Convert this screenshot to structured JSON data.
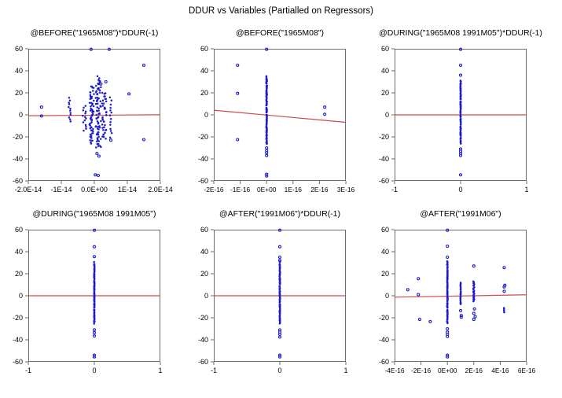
{
  "chart_data": {
    "type": "scatter",
    "title": "DDUR vs Variables (Partialled on Regressors)",
    "ylim": [
      -60,
      60
    ],
    "yticks": [
      60,
      40,
      20,
      0,
      -20,
      -40,
      -60
    ],
    "legend": null,
    "grid": false,
    "colors": {
      "point": "#1c1ccd",
      "line": "#cc4b4b",
      "frame": "#6b6b6b",
      "text": "#000000"
    },
    "panels": [
      {
        "title": "@BEFORE(\"1965M08\")*DDUR(-1)",
        "xlim": [
          -2e-14,
          2e-14
        ],
        "xticks": [
          {
            "v": -2e-14,
            "label": "-2.0E-14"
          },
          {
            "v": -1e-14,
            "label": "-1E-14"
          },
          {
            "v": 0,
            "label": "0.0E+00"
          },
          {
            "v": 1e-14,
            "label": "1E-14"
          },
          {
            "v": 2e-14,
            "label": "2.0E-14"
          }
        ],
        "line": [
          -0.8,
          0.1
        ],
        "columns": [
          {
            "x": -7.5e-15,
            "ymin": -6,
            "ymax": 15,
            "n": 12,
            "spread": 3e-16
          },
          {
            "x": -3e-15,
            "ymin": -14,
            "ymax": 8,
            "n": 14,
            "spread": 5e-16
          },
          {
            "x": -8e-16,
            "ymin": -26,
            "ymax": 26,
            "n": 60,
            "spread": 7e-16
          },
          {
            "x": 1.2e-15,
            "ymin": -30,
            "ymax": 35,
            "n": 75,
            "spread": 8e-16
          },
          {
            "x": 3e-15,
            "ymin": -22,
            "ymax": 21,
            "n": 38,
            "spread": 7e-16
          },
          {
            "x": 5e-15,
            "ymin": -20,
            "ymax": 15,
            "n": 14,
            "spread": 3e-16
          }
        ],
        "points": [
          [
            -1.6e-14,
            7
          ],
          [
            -1.6e-14,
            -1
          ],
          [
            -1e-15,
            59.5
          ],
          [
            4.5e-15,
            59.5
          ],
          [
            1.05e-14,
            19
          ],
          [
            1.5e-14,
            45
          ],
          [
            1.5e-14,
            -22.5
          ],
          [
            8e-16,
            -35
          ],
          [
            1.4e-15,
            -37.5
          ],
          [
            3e-16,
            -54.5
          ],
          [
            1.2e-15,
            -55
          ],
          [
            5e-15,
            -23
          ],
          [
            3.5e-15,
            30
          ],
          [
            2e-15,
            28
          ]
        ]
      },
      {
        "title": "@BEFORE(\"1965M08\")",
        "xlim": [
          -2e-16,
          3e-16
        ],
        "xticks": [
          {
            "v": -2e-16,
            "label": "-2E-16"
          },
          {
            "v": -1e-16,
            "label": "-1E-16"
          },
          {
            "v": 0,
            "label": "0E+00"
          },
          {
            "v": 1e-16,
            "label": "1E-16"
          },
          {
            "v": 2e-16,
            "label": "2E-16"
          },
          {
            "v": 3e-16,
            "label": "3E-16"
          }
        ],
        "line": [
          4.2,
          -6.8
        ],
        "columns": [
          {
            "x": 0,
            "ymin": -26,
            "ymax": 35,
            "n": 120,
            "spread": 1.5e-18
          }
        ],
        "points": [
          [
            0,
            59.5
          ],
          [
            -1.1e-16,
            45
          ],
          [
            -1.1e-16,
            19.5
          ],
          [
            -1.1e-16,
            -22.5
          ],
          [
            2.2e-16,
            7
          ],
          [
            2.2e-16,
            0.5
          ],
          [
            0,
            -30
          ],
          [
            0,
            -32.5
          ],
          [
            0,
            -34.5
          ],
          [
            0,
            -37
          ],
          [
            0,
            -54
          ],
          [
            0,
            -55.5
          ]
        ]
      },
      {
        "title": "@DURING(\"1965M08 1991M05\")*DDUR(-1)",
        "xlim": [
          -1,
          1
        ],
        "xticks": [
          {
            "v": -1,
            "label": "-1"
          },
          {
            "v": 0,
            "label": "0"
          },
          {
            "v": 1,
            "label": "1"
          }
        ],
        "line": [
          0,
          0
        ],
        "columns": [
          {
            "x": 0,
            "ymin": -25,
            "ymax": 31,
            "n": 110,
            "spread": 0.004
          }
        ],
        "points": [
          [
            0,
            59.5
          ],
          [
            0,
            45
          ],
          [
            0,
            36
          ],
          [
            0,
            -31
          ],
          [
            0,
            -33
          ],
          [
            0,
            -35
          ],
          [
            0,
            -37
          ],
          [
            0,
            -54.5
          ]
        ]
      },
      {
        "title": "@DURING(\"1965M08 1991M05\")",
        "xlim": [
          -1,
          1
        ],
        "xticks": [
          {
            "v": -1,
            "label": "-1"
          },
          {
            "v": 0,
            "label": "0"
          },
          {
            "v": 1,
            "label": "1"
          }
        ],
        "line": [
          0,
          0
        ],
        "columns": [
          {
            "x": 0,
            "ymin": -25,
            "ymax": 30,
            "n": 110,
            "spread": 0.004
          }
        ],
        "points": [
          [
            0,
            59.5
          ],
          [
            0,
            44.5
          ],
          [
            0,
            35.5
          ],
          [
            0,
            -31
          ],
          [
            0,
            -33.5
          ],
          [
            0,
            -36.5
          ],
          [
            0,
            -54
          ],
          [
            0,
            -55.5
          ]
        ]
      },
      {
        "title": "@AFTER(\"1991M06\")*DDUR(-1)",
        "xlim": [
          -1,
          1
        ],
        "xticks": [
          {
            "v": -1,
            "label": "-1"
          },
          {
            "v": 0,
            "label": "0"
          },
          {
            "v": 1,
            "label": "1"
          }
        ],
        "line": [
          0,
          0
        ],
        "columns": [
          {
            "x": 0,
            "ymin": -25,
            "ymax": 30,
            "n": 110,
            "spread": 0.004
          }
        ],
        "points": [
          [
            0,
            59.5
          ],
          [
            0,
            44.5
          ],
          [
            0,
            35
          ],
          [
            0,
            32
          ],
          [
            0,
            -31
          ],
          [
            0,
            -33
          ],
          [
            0,
            -35
          ],
          [
            0,
            -37.5
          ],
          [
            0,
            -54
          ],
          [
            0,
            -55.5
          ]
        ]
      },
      {
        "title": "@AFTER(\"1991M06\")",
        "xlim": [
          -4e-16,
          6e-16
        ],
        "xticks": [
          {
            "v": -4e-16,
            "label": "-4E-16"
          },
          {
            "v": -2e-16,
            "label": "-2E-16"
          },
          {
            "v": 0,
            "label": "0E+00"
          },
          {
            "v": 2e-16,
            "label": "2E-16"
          },
          {
            "v": 4e-16,
            "label": "4E-16"
          },
          {
            "v": 6e-16,
            "label": "6E-16"
          }
        ],
        "line": [
          -1.3,
          0.9
        ],
        "columns": [
          {
            "x": 0,
            "ymin": -25,
            "ymax": 31,
            "n": 110,
            "spread": 2e-18
          },
          {
            "x": 1e-16,
            "ymin": -8,
            "ymax": 12,
            "n": 24,
            "spread": 2e-18
          },
          {
            "x": 2e-16,
            "ymin": -5,
            "ymax": 13,
            "n": 26,
            "spread": 4e-18
          },
          {
            "x": 4.3e-16,
            "ymin": -15,
            "ymax": -11,
            "n": 4,
            "spread": 2e-18
          }
        ],
        "points": [
          [
            -3e-16,
            5.5
          ],
          [
            -2.2e-16,
            15.5
          ],
          [
            -2.2e-16,
            1
          ],
          [
            -2.1e-16,
            -21.5
          ],
          [
            -1.3e-16,
            -23.5
          ],
          [
            0,
            59.5
          ],
          [
            0,
            45
          ],
          [
            0,
            35
          ],
          [
            0,
            -30
          ],
          [
            0,
            -33
          ],
          [
            0,
            -35
          ],
          [
            0,
            -37
          ],
          [
            0,
            -54
          ],
          [
            0,
            -55.5
          ],
          [
            1e-16,
            -13.5
          ],
          [
            1.05e-16,
            -18
          ],
          [
            1.05e-16,
            -19.5
          ],
          [
            2e-16,
            27
          ],
          [
            2.05e-16,
            -12
          ],
          [
            2e-16,
            -16
          ],
          [
            2.1e-16,
            -19
          ],
          [
            2e-16,
            -21.5
          ],
          [
            4.3e-16,
            25.5
          ],
          [
            4.35e-16,
            9.5
          ],
          [
            4.3e-16,
            8
          ],
          [
            4.3e-16,
            4
          ]
        ]
      }
    ]
  }
}
